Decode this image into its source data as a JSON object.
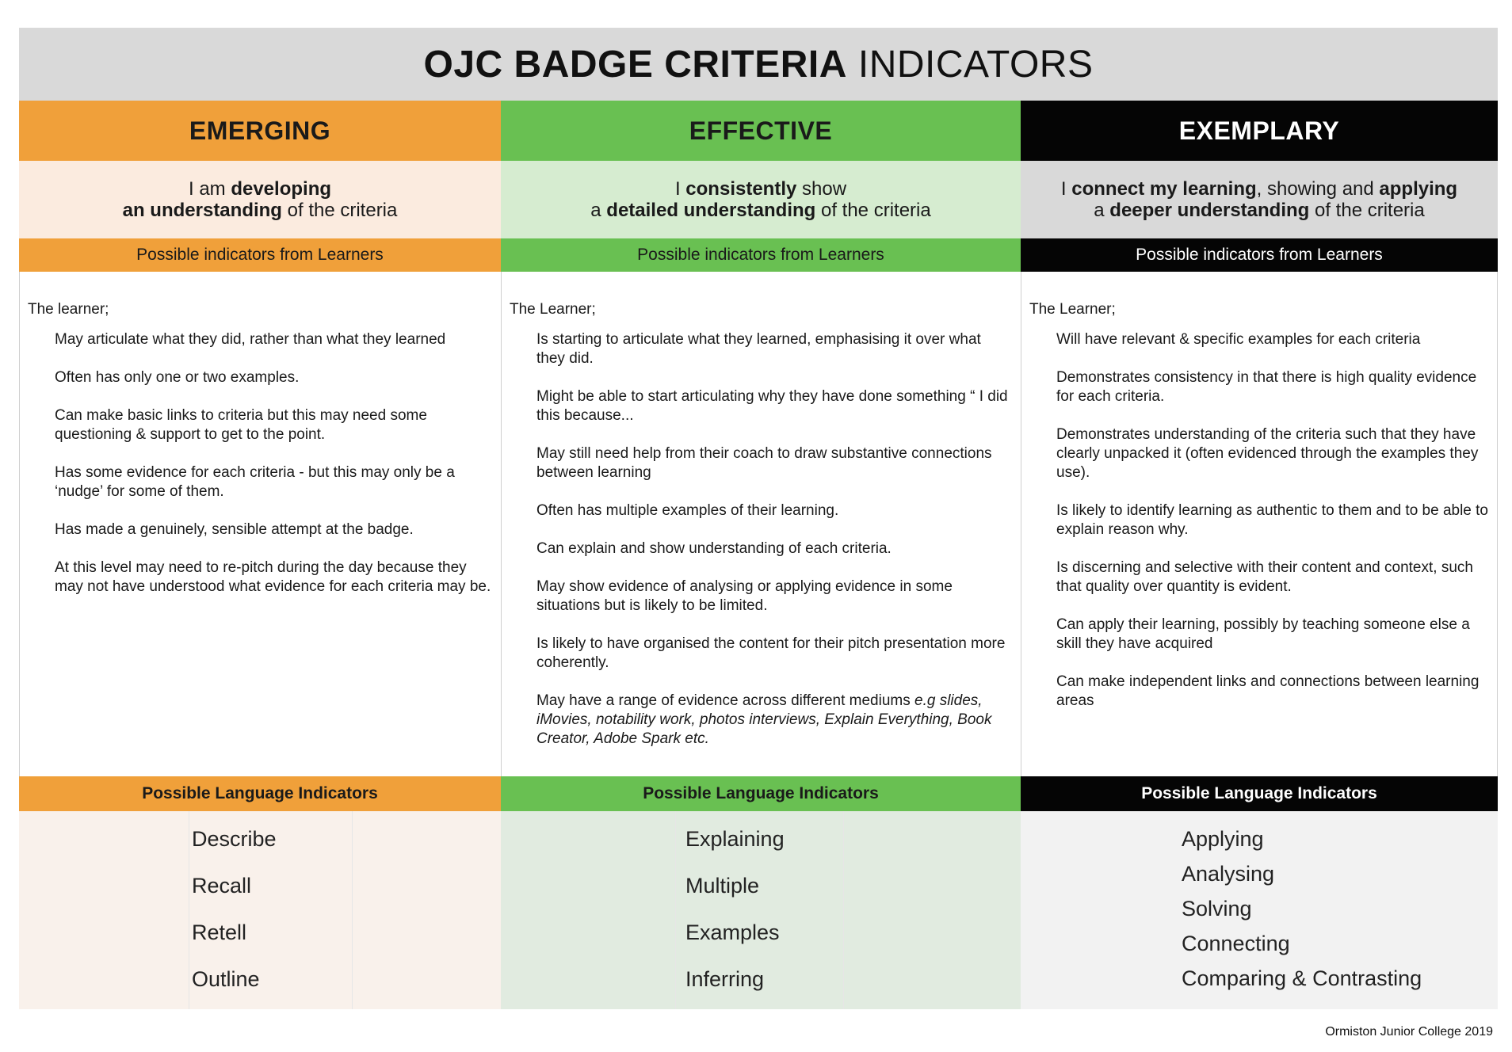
{
  "title": {
    "bold": "OJC BADGE CRITERIA",
    "light": "INDICATORS"
  },
  "columns": [
    {
      "heading": "EMERGING",
      "statement_line1": [
        "I am ",
        "developing",
        ""
      ],
      "statement_line2": [
        "",
        "an understanding",
        " of the criteria"
      ],
      "indicators_bar": "Possible indicators from Learners",
      "learner_label": "The learner;",
      "items": [
        "May articulate what they did, rather than what they learned",
        "Often has only one or two examples.",
        "Can make basic links to criteria but this may need some questioning & support to get to the point.",
        "Has some evidence for each criteria  - but this may only be a ‘nudge’ for some of them.",
        "Has made a genuinely, sensible attempt at the badge.",
        "At this level may need to re-pitch during the day because they may not have understood what evidence for each criteria may be."
      ],
      "language_bar": "Possible Language Indicators",
      "words": [
        "Describe",
        "Recall",
        "Retell",
        "Outline"
      ]
    },
    {
      "heading": "EFFECTIVE",
      "statement_line1": [
        "I ",
        "consistently",
        " show"
      ],
      "statement_line2": [
        "a ",
        "detailed understanding",
        " of the criteria"
      ],
      "indicators_bar": "Possible indicators from Learners",
      "learner_label": "The Learner;",
      "items": [
        "Is starting to articulate what they learned, emphasising   it over what they did.",
        "Might be able to start articulating why they have done something “ I did this because...",
        "May still need help from their coach to draw substantive connections between learning",
        "Often has multiple examples of their learning.",
        "Can explain and show understanding of each criteria.",
        "May show evidence of analysing or applying evidence in some situations but is likely to be limited.",
        "Is likely to have organised the content for their pitch presentation more coherently."
      ],
      "last_item_plain": "May have a range of evidence across different mediums ",
      "last_item_italic": "e.g slides, iMovies, notability work, photos interviews, Explain Everything, Book Creator, Adobe Spark etc.",
      "language_bar": "Possible Language Indicators",
      "words": [
        "Explaining",
        "Multiple",
        "Examples",
        "Inferring"
      ]
    },
    {
      "heading": "EXEMPLARY",
      "statement_line1": [
        "I ",
        "connect my learning",
        ", showing and ",
        "applying"
      ],
      "statement_line2": [
        "a ",
        "deeper understanding",
        " of the criteria"
      ],
      "indicators_bar": "Possible indicators from Learners",
      "learner_label": "The Learner;",
      "items": [
        "Will have relevant & specific examples for each criteria",
        "Demonstrates consistency in that there is high quality evidence for each criteria.",
        "Demonstrates understanding of the criteria such that they have clearly unpacked it (often evidenced through the examples they use).",
        "Is likely to identify learning as authentic to them and   to be able to explain reason why.",
        "Is discerning and selective with their content and context, such that quality over quantity is evident.",
        "Can apply their learning, possibly by teaching  someone else a skill they have acquired",
        "Can make independent links and connections between learning areas"
      ],
      "language_bar": "Possible Language Indicators",
      "words": [
        "Applying",
        "Analysing",
        "Solving",
        "Connecting",
        "Comparing & Contrasting"
      ]
    }
  ],
  "footer": "Ormiston Junior College 2019"
}
